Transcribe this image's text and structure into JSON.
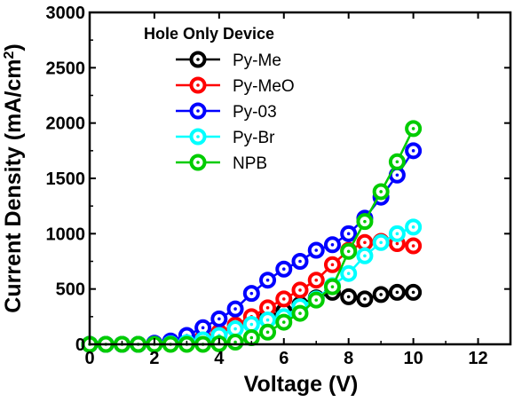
{
  "chart_data": {
    "type": "line",
    "title": "",
    "xlabel": "Voltage (V)",
    "ylabel": "Current Density (mA/cm",
    "ylabel_sup": "2",
    "ylabel_close": ")",
    "xlim": [
      0,
      13
    ],
    "ylim": [
      0,
      3000
    ],
    "xticks": [
      "0",
      "2",
      "4",
      "6",
      "8",
      "10",
      "12"
    ],
    "yticks": [
      "0",
      "500",
      "1000",
      "1500",
      "2000",
      "2500",
      "3000"
    ],
    "legend_title": "Hole Only Device",
    "legend_position": "top-center",
    "x": [
      0,
      0.5,
      1,
      1.5,
      2,
      2.5,
      3,
      3.5,
      4,
      4.5,
      5,
      5.5,
      6,
      6.5,
      7,
      7.5,
      8,
      8.5,
      9,
      9.5,
      10
    ],
    "series": [
      {
        "name": "Py-Me",
        "color": "#000000",
        "values": [
          0,
          0,
          0,
          0,
          5,
          10,
          25,
          55,
          95,
          145,
          200,
          250,
          300,
          360,
          420,
          470,
          430,
          410,
          450,
          470,
          470
        ]
      },
      {
        "name": "Py-MeO",
        "color": "#ff0000",
        "values": [
          0,
          0,
          0,
          0,
          5,
          10,
          30,
          60,
          110,
          175,
          250,
          330,
          410,
          490,
          580,
          720,
          850,
          920,
          930,
          910,
          890
        ]
      },
      {
        "name": "Py-03",
        "color": "#0000ff",
        "values": [
          0,
          0,
          0,
          0,
          10,
          30,
          80,
          150,
          230,
          320,
          460,
          580,
          680,
          750,
          850,
          900,
          1000,
          1140,
          1330,
          1530,
          1750
        ]
      },
      {
        "name": "Py-Br",
        "color": "#00ffff",
        "values": [
          0,
          0,
          0,
          0,
          0,
          5,
          15,
          40,
          80,
          140,
          180,
          220,
          250,
          340,
          410,
          530,
          640,
          800,
          920,
          1000,
          1060
        ]
      },
      {
        "name": "NPB",
        "color": "#00cc00",
        "values": [
          0,
          0,
          0,
          0,
          0,
          0,
          0,
          0,
          5,
          20,
          60,
          110,
          200,
          280,
          400,
          520,
          840,
          1110,
          1380,
          1650,
          1950
        ]
      }
    ]
  }
}
